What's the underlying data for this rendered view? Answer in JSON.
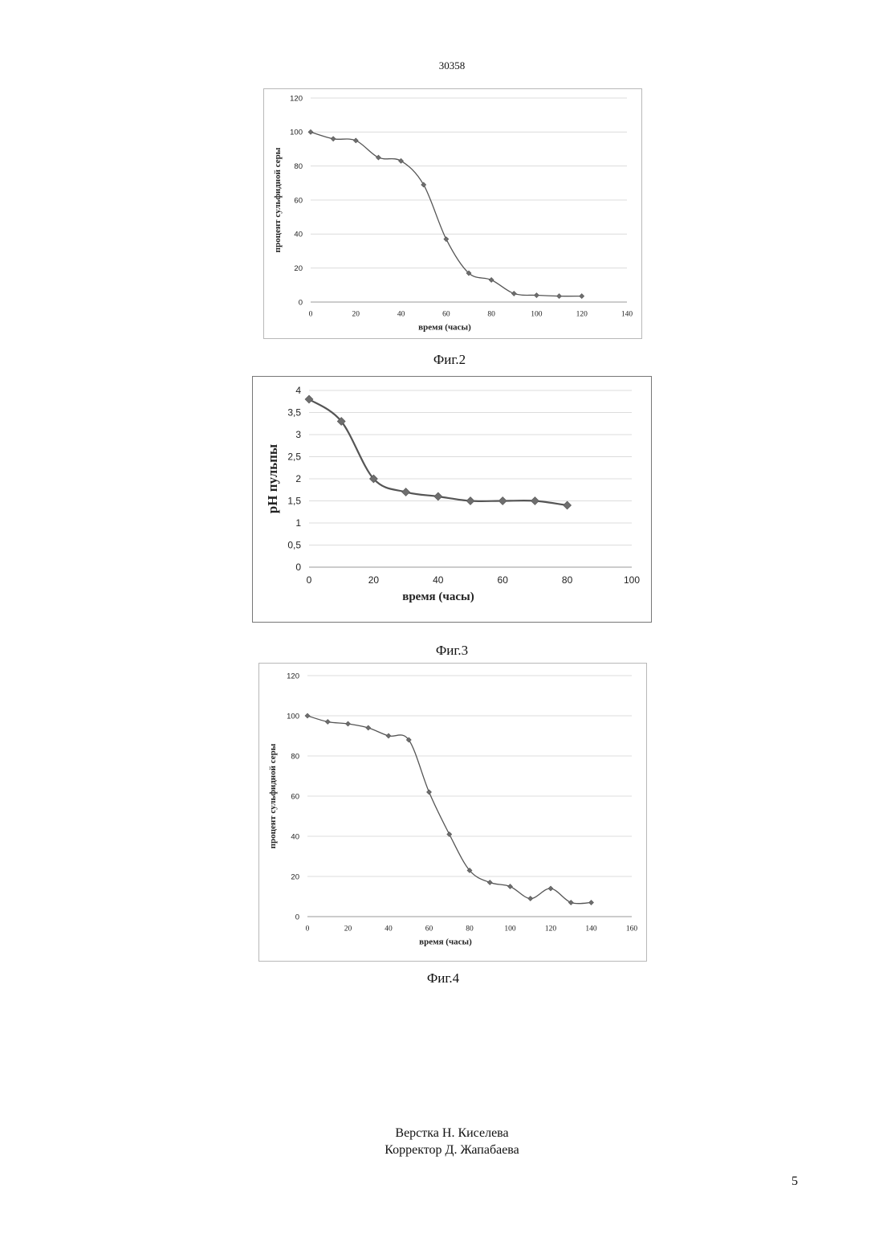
{
  "header": {
    "doc_number": "30358"
  },
  "figures": [
    {
      "caption": "Фиг.2"
    },
    {
      "caption": "Фиг.3"
    },
    {
      "caption": "Фиг.4"
    }
  ],
  "footer": {
    "layout_credit": "Верстка Н. Киселева",
    "corrector_credit": "Корректор Д. Жапабаева",
    "page_number": "5"
  },
  "chart_data": [
    {
      "type": "line",
      "title": "",
      "xlabel": "время (часы)",
      "ylabel": "процент сульфидной серы",
      "xlim": [
        0,
        140
      ],
      "ylim": [
        0,
        120
      ],
      "x_ticks": [
        0,
        20,
        40,
        60,
        80,
        100,
        120,
        140
      ],
      "y_ticks": [
        0,
        20,
        40,
        60,
        80,
        100,
        120
      ],
      "x_tick_labels": [
        "0",
        "20",
        "40",
        "60",
        "80",
        "100",
        "120",
        "140"
      ],
      "y_tick_labels": [
        "0",
        "20",
        "40",
        "60",
        "80",
        "100",
        "120"
      ],
      "grid": true,
      "series": [
        {
          "x": [
            0,
            10,
            20,
            30,
            40,
            50,
            60,
            70,
            80,
            90,
            100,
            110,
            120
          ],
          "values": [
            100,
            96,
            95,
            85,
            83,
            69,
            37,
            17,
            13,
            5,
            4,
            3.5,
            3.5
          ]
        }
      ],
      "color": "#555555"
    },
    {
      "type": "line",
      "title": "",
      "xlabel": "время (часы)",
      "ylabel": "pH пульпы",
      "xlim": [
        0,
        100
      ],
      "ylim": [
        0,
        4
      ],
      "x_ticks": [
        0,
        20,
        40,
        60,
        80,
        100
      ],
      "y_ticks": [
        0,
        0.5,
        1,
        1.5,
        2,
        2.5,
        3,
        3.5,
        4
      ],
      "x_tick_labels": [
        "0",
        "20",
        "40",
        "60",
        "80",
        "100"
      ],
      "y_tick_labels": [
        "0",
        "0,5",
        "1",
        "1,5",
        "2",
        "2,5",
        "3",
        "3,5",
        "4"
      ],
      "grid": true,
      "series": [
        {
          "x": [
            0,
            10,
            20,
            30,
            40,
            50,
            60,
            70,
            80
          ],
          "values": [
            3.8,
            3.3,
            2.0,
            1.7,
            1.6,
            1.5,
            1.5,
            1.5,
            1.4
          ]
        }
      ],
      "color": "#555555"
    },
    {
      "type": "line",
      "title": "",
      "xlabel": "время (часы)",
      "ylabel": "процент сульфидной серы",
      "xlim": [
        0,
        160
      ],
      "ylim": [
        0,
        120
      ],
      "x_ticks": [
        0,
        20,
        40,
        60,
        80,
        100,
        120,
        140,
        160
      ],
      "y_ticks": [
        0,
        20,
        40,
        60,
        80,
        100,
        120
      ],
      "x_tick_labels": [
        "0",
        "20",
        "40",
        "60",
        "80",
        "100",
        "120",
        "140",
        "160"
      ],
      "y_tick_labels": [
        "0",
        "20",
        "40",
        "60",
        "80",
        "100",
        "120"
      ],
      "grid": true,
      "series": [
        {
          "x": [
            0,
            10,
            20,
            30,
            40,
            50,
            60,
            70,
            80,
            90,
            100,
            110,
            120,
            130,
            140
          ],
          "values": [
            100,
            97,
            96,
            94,
            90,
            88,
            62,
            41,
            23,
            17,
            15,
            9,
            14,
            7,
            7
          ]
        }
      ],
      "color": "#555555"
    }
  ]
}
